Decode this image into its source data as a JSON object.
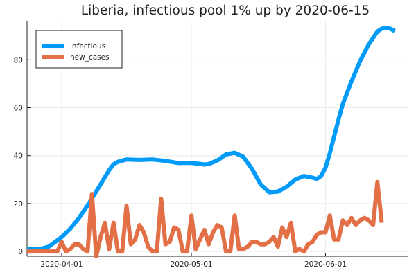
{
  "chart_data": {
    "type": "line",
    "title": "Liberia, infectious pool 1% up by 2020-06-15",
    "xlabel": "",
    "ylabel": "",
    "x_axis": {
      "kind": "date",
      "range": [
        "2020-03-24",
        "2020-06-20"
      ],
      "ticks": [
        "2020-04-01",
        "2020-05-01",
        "2020-06-01"
      ]
    },
    "y_axis": {
      "range": [
        -2,
        96
      ],
      "ticks": [
        0,
        20,
        40,
        60,
        80
      ]
    },
    "grid": true,
    "legend": {
      "position": "top-left",
      "entries": [
        "infectious",
        "new_cases"
      ]
    },
    "series": [
      {
        "name": "infectious",
        "color": "#009af9",
        "points": [
          [
            "2020-03-24",
            1
          ],
          [
            "2020-03-27",
            1.1
          ],
          [
            "2020-03-28",
            1.5
          ],
          [
            "2020-03-29",
            2.0
          ],
          [
            "2020-03-30",
            3.3
          ],
          [
            "2020-04-01",
            6.0
          ],
          [
            "2020-04-03",
            9.5
          ],
          [
            "2020-04-05",
            14.0
          ],
          [
            "2020-04-07",
            19.2
          ],
          [
            "2020-04-09",
            25.0
          ],
          [
            "2020-04-11",
            31.0
          ],
          [
            "2020-04-12",
            34.0
          ],
          [
            "2020-04-13",
            36.4
          ],
          [
            "2020-04-14",
            37.4
          ],
          [
            "2020-04-16",
            38.4
          ],
          [
            "2020-04-19",
            38.2
          ],
          [
            "2020-04-22",
            38.4
          ],
          [
            "2020-04-25",
            37.8
          ],
          [
            "2020-04-28",
            36.9
          ],
          [
            "2020-05-01",
            37.0
          ],
          [
            "2020-05-04",
            36.3
          ],
          [
            "2020-05-05",
            36.5
          ],
          [
            "2020-05-07",
            38.0
          ],
          [
            "2020-05-09",
            40.5
          ],
          [
            "2020-05-11",
            41.2
          ],
          [
            "2020-05-13",
            39.5
          ],
          [
            "2020-05-15",
            34.5
          ],
          [
            "2020-05-17",
            28.0
          ],
          [
            "2020-05-19",
            24.7
          ],
          [
            "2020-05-21",
            25.0
          ],
          [
            "2020-05-23",
            27.0
          ],
          [
            "2020-05-25",
            30.0
          ],
          [
            "2020-05-27",
            31.5
          ],
          [
            "2020-05-29",
            30.8
          ],
          [
            "2020-05-30",
            30.3
          ],
          [
            "2020-05-31",
            31.5
          ],
          [
            "2020-06-01",
            35.0
          ],
          [
            "2020-06-02",
            41.0
          ],
          [
            "2020-06-03",
            48.0
          ],
          [
            "2020-06-04",
            55.0
          ],
          [
            "2020-06-05",
            61.5
          ],
          [
            "2020-06-07",
            71.0
          ],
          [
            "2020-06-09",
            79.5
          ],
          [
            "2020-06-11",
            86.5
          ],
          [
            "2020-06-13",
            91.8
          ],
          [
            "2020-06-14",
            93.0
          ],
          [
            "2020-06-15",
            93.3
          ],
          [
            "2020-06-16",
            93.0
          ],
          [
            "2020-06-17",
            92.0
          ]
        ]
      },
      {
        "name": "new_cases",
        "color": "#e26f46",
        "points": [
          [
            "2020-03-24",
            0
          ],
          [
            "2020-03-25",
            0
          ],
          [
            "2020-03-26",
            0
          ],
          [
            "2020-03-27",
            0
          ],
          [
            "2020-03-28",
            0
          ],
          [
            "2020-03-29",
            0
          ],
          [
            "2020-03-30",
            0
          ],
          [
            "2020-03-31",
            0
          ],
          [
            "2020-04-01",
            4
          ],
          [
            "2020-04-02",
            0
          ],
          [
            "2020-04-03",
            1
          ],
          [
            "2020-04-04",
            3
          ],
          [
            "2020-04-05",
            3
          ],
          [
            "2020-04-06",
            1
          ],
          [
            "2020-04-07",
            0
          ],
          [
            "2020-04-08",
            24
          ],
          [
            "2020-04-09",
            -2
          ],
          [
            "2020-04-10",
            6
          ],
          [
            "2020-04-11",
            12
          ],
          [
            "2020-04-12",
            1
          ],
          [
            "2020-04-13",
            12
          ],
          [
            "2020-04-14",
            0
          ],
          [
            "2020-04-15",
            0
          ],
          [
            "2020-04-16",
            19
          ],
          [
            "2020-04-17",
            3
          ],
          [
            "2020-04-18",
            5
          ],
          [
            "2020-04-19",
            11
          ],
          [
            "2020-04-20",
            8
          ],
          [
            "2020-04-21",
            2
          ],
          [
            "2020-04-22",
            0
          ],
          [
            "2020-04-23",
            0
          ],
          [
            "2020-04-24",
            22
          ],
          [
            "2020-04-25",
            3
          ],
          [
            "2020-04-26",
            4
          ],
          [
            "2020-04-27",
            10
          ],
          [
            "2020-04-28",
            9
          ],
          [
            "2020-04-29",
            0
          ],
          [
            "2020-04-30",
            0
          ],
          [
            "2020-05-01",
            15
          ],
          [
            "2020-05-02",
            1
          ],
          [
            "2020-05-03",
            5
          ],
          [
            "2020-05-04",
            9
          ],
          [
            "2020-05-05",
            3
          ],
          [
            "2020-05-06",
            8
          ],
          [
            "2020-05-07",
            11
          ],
          [
            "2020-05-08",
            10
          ],
          [
            "2020-05-09",
            0
          ],
          [
            "2020-05-10",
            0
          ],
          [
            "2020-05-11",
            15
          ],
          [
            "2020-05-12",
            1
          ],
          [
            "2020-05-13",
            1
          ],
          [
            "2020-05-14",
            2
          ],
          [
            "2020-05-15",
            4
          ],
          [
            "2020-05-16",
            4
          ],
          [
            "2020-05-17",
            3
          ],
          [
            "2020-05-18",
            3
          ],
          [
            "2020-05-19",
            4
          ],
          [
            "2020-05-20",
            6
          ],
          [
            "2020-05-21",
            2
          ],
          [
            "2020-05-22",
            10
          ],
          [
            "2020-05-23",
            6
          ],
          [
            "2020-05-24",
            12
          ],
          [
            "2020-05-25",
            0
          ],
          [
            "2020-05-26",
            1
          ],
          [
            "2020-05-27",
            0
          ],
          [
            "2020-05-28",
            3
          ],
          [
            "2020-05-29",
            4
          ],
          [
            "2020-05-30",
            7
          ],
          [
            "2020-05-31",
            8
          ],
          [
            "2020-06-01",
            8
          ],
          [
            "2020-06-02",
            15
          ],
          [
            "2020-06-03",
            5
          ],
          [
            "2020-06-04",
            5
          ],
          [
            "2020-06-05",
            13
          ],
          [
            "2020-06-06",
            11
          ],
          [
            "2020-06-07",
            14
          ],
          [
            "2020-06-08",
            11
          ],
          [
            "2020-06-09",
            13
          ],
          [
            "2020-06-10",
            14
          ],
          [
            "2020-06-11",
            13
          ],
          [
            "2020-06-12",
            11
          ],
          [
            "2020-06-13",
            29
          ],
          [
            "2020-06-14",
            12
          ]
        ]
      }
    ]
  }
}
